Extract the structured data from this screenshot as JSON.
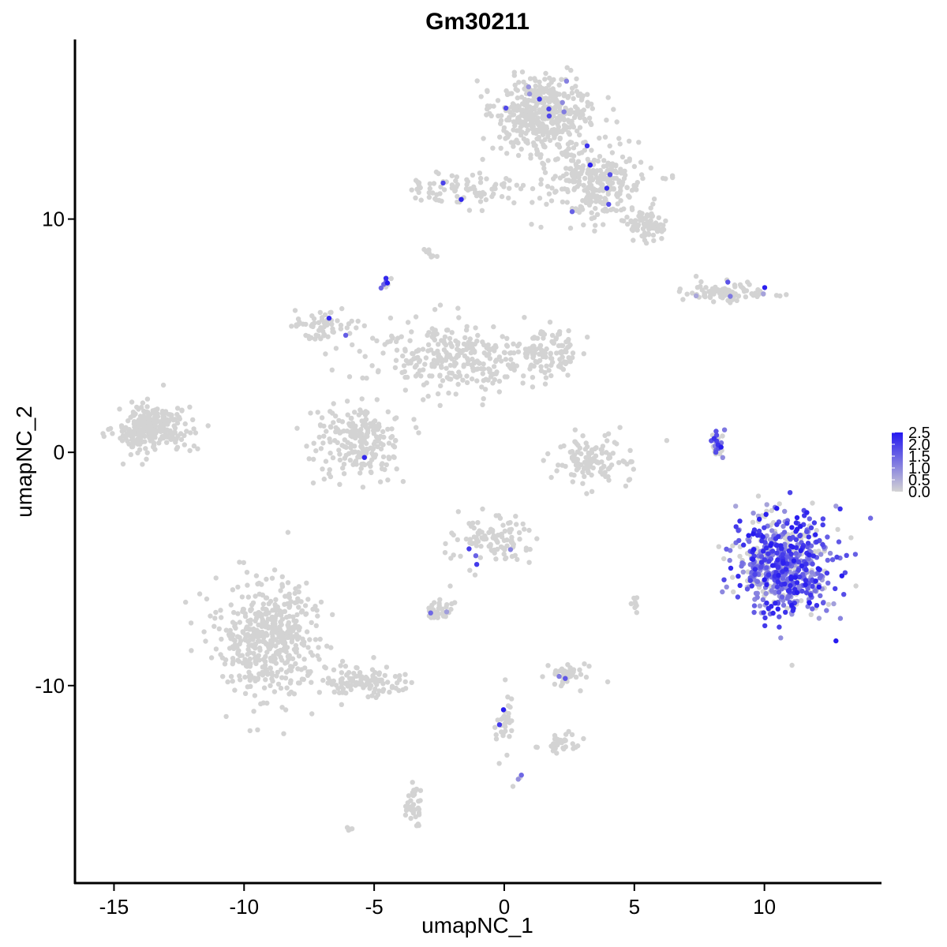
{
  "chart_data": {
    "type": "scatter",
    "title": "Gm30211",
    "xlabel": "umapNC_1",
    "ylabel": "umapNC_2",
    "xlim": [
      -16.5,
      14.5
    ],
    "ylim": [
      -18.5,
      17.7
    ],
    "x_ticks": [
      -15,
      -10,
      -5,
      0,
      5,
      10
    ],
    "x_tick_labels": [
      "-15",
      "-10",
      "-5",
      "0",
      "5",
      "10"
    ],
    "y_ticks": [
      10,
      0,
      -10
    ],
    "y_tick_labels": [
      "10",
      "0",
      "-10"
    ],
    "grid": false,
    "legend": {
      "placement": "right",
      "type": "colorbar",
      "labels": [
        "2.5",
        "2.0",
        "1.5",
        "1.0",
        "0.5",
        "0.0"
      ],
      "values": [
        2.5,
        2.0,
        1.5,
        1.0,
        0.5,
        0.0
      ],
      "range": [
        0,
        2.5
      ]
    },
    "colors": {
      "low": "#d3d3d3",
      "high": "#2418f0"
    },
    "clusters": [
      {
        "x": 1.5,
        "y": 14.5,
        "sx": 1.1,
        "sy": 1.0,
        "n": 450,
        "expr_frac": 0.01
      },
      {
        "x": 3.5,
        "y": 11.5,
        "sx": 1.3,
        "sy": 1.0,
        "n": 300,
        "expr_frac": 0.01
      },
      {
        "x": 5.5,
        "y": 9.7,
        "sx": 0.5,
        "sy": 0.4,
        "n": 80,
        "expr_frac": 0.0
      },
      {
        "x": -1.5,
        "y": 11.3,
        "sx": 1.5,
        "sy": 0.4,
        "n": 90,
        "expr_frac": 0.03
      },
      {
        "x": 8.5,
        "y": 6.9,
        "sx": 1.2,
        "sy": 0.25,
        "n": 90,
        "expr_frac": 0.05
      },
      {
        "x": -4.5,
        "y": 7.3,
        "sx": 0.15,
        "sy": 0.2,
        "n": 10,
        "expr_frac": 0.5
      },
      {
        "x": -7.0,
        "y": 5.3,
        "sx": 0.7,
        "sy": 0.5,
        "n": 60,
        "expr_frac": 0.02
      },
      {
        "x": -2.0,
        "y": 4.0,
        "sx": 1.8,
        "sy": 1.0,
        "n": 280,
        "expr_frac": 0.0
      },
      {
        "x": 1.5,
        "y": 4.2,
        "sx": 0.9,
        "sy": 0.6,
        "n": 120,
        "expr_frac": 0.0
      },
      {
        "x": -5.5,
        "y": 0.5,
        "sx": 1.0,
        "sy": 1.0,
        "n": 220,
        "expr_frac": 0.01
      },
      {
        "x": -13.5,
        "y": 1.0,
        "sx": 0.9,
        "sy": 0.6,
        "n": 260,
        "expr_frac": 0.0
      },
      {
        "x": 3.5,
        "y": -0.3,
        "sx": 1.0,
        "sy": 0.7,
        "n": 110,
        "expr_frac": 0.0
      },
      {
        "x": 8.2,
        "y": 0.2,
        "sx": 0.15,
        "sy": 0.55,
        "n": 30,
        "expr_frac": 0.65
      },
      {
        "x": 10.8,
        "y": -4.8,
        "sx": 1.2,
        "sy": 1.3,
        "n": 650,
        "expr_frac": 0.75
      },
      {
        "x": -0.5,
        "y": -3.8,
        "sx": 0.9,
        "sy": 0.6,
        "n": 110,
        "expr_frac": 0.03
      },
      {
        "x": -9.0,
        "y": -8.0,
        "sx": 1.2,
        "sy": 1.6,
        "n": 480,
        "expr_frac": 0.0
      },
      {
        "x": -5.5,
        "y": -9.8,
        "sx": 1.0,
        "sy": 0.4,
        "n": 110,
        "expr_frac": 0.0
      },
      {
        "x": -2.5,
        "y": -6.8,
        "sx": 0.3,
        "sy": 0.3,
        "n": 35,
        "expr_frac": 0.1
      },
      {
        "x": 2.4,
        "y": -9.5,
        "sx": 0.5,
        "sy": 0.3,
        "n": 45,
        "expr_frac": 0.02
      },
      {
        "x": 2.2,
        "y": -12.5,
        "sx": 0.5,
        "sy": 0.2,
        "n": 35,
        "expr_frac": 0.0
      },
      {
        "x": 0.0,
        "y": -11.5,
        "sx": 0.2,
        "sy": 1.0,
        "n": 35,
        "expr_frac": 0.05
      },
      {
        "x": -3.5,
        "y": -15.0,
        "sx": 0.2,
        "sy": 0.6,
        "n": 35,
        "expr_frac": 0.0
      },
      {
        "x": 5.0,
        "y": -6.4,
        "sx": 0.15,
        "sy": 0.3,
        "n": 10,
        "expr_frac": 0.0
      },
      {
        "x": 3.2,
        "y": -0.6,
        "sx": 0.15,
        "sy": 0.4,
        "n": 10,
        "expr_frac": 0.0
      },
      {
        "x": -6.0,
        "y": -16.2,
        "sx": 0.1,
        "sy": 0.1,
        "n": 4,
        "expr_frac": 0.0
      },
      {
        "x": 0.6,
        "y": -13.9,
        "sx": 0.08,
        "sy": 0.08,
        "n": 3,
        "expr_frac": 0.6
      },
      {
        "x": -2.8,
        "y": 8.6,
        "sx": 0.2,
        "sy": 0.15,
        "n": 8,
        "expr_frac": 0.0
      }
    ]
  }
}
